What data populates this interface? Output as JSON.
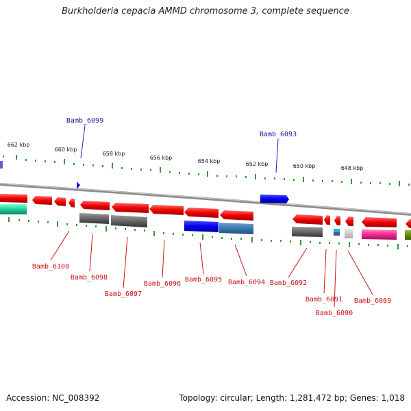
{
  "title": "Burkholderia cepacia AMMD chromosome 3, complete sequence",
  "footer": {
    "accession": "Accession: NC_008392",
    "summary": "Topology: circular; Length: 1,281,472 bp; Genes: 1,018"
  },
  "scale_labels": [
    "662 kbp",
    "660 kbp",
    "658 kbp",
    "656 kbp",
    "654 kbp",
    "652 kbp",
    "650 kbp",
    "648 kbp"
  ],
  "gene_labels_top": [
    "Bamb_6099",
    "Bamb_6093"
  ],
  "gene_labels_bottom": [
    "Bamb_6100",
    "Bamb_6098",
    "Bamb_6097",
    "Bamb_6096",
    "Bamb_6095",
    "Bamb_6094",
    "Bamb_6092",
    "Bamb_6091",
    "Bamb_6090",
    "Bamb_6089"
  ],
  "colors": {
    "forward_gene": "#0000ee",
    "reverse_gene": "#ee0000",
    "backbone": "#9a9a9a",
    "tick": "#339933",
    "label_top": "#1a1aa6",
    "label_bottom": "#cc1111"
  }
}
